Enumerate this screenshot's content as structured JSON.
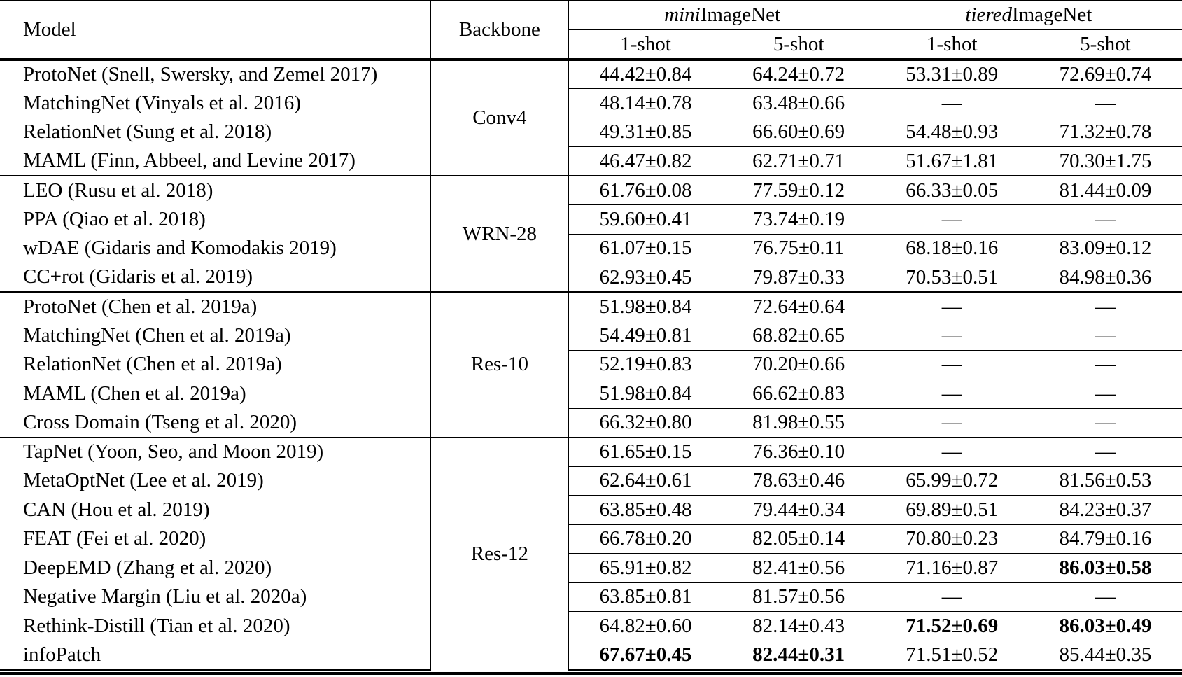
{
  "colors": {
    "text": "#000000",
    "background": "#ffffff",
    "rule": "#000000"
  },
  "missing_marker": "—",
  "header": {
    "model": "Model",
    "backbone": "Backbone",
    "groups": [
      {
        "italic": "mini",
        "rest": "ImageNet",
        "sub": [
          "1-shot",
          "5-shot"
        ]
      },
      {
        "italic": "tiered",
        "rest": "ImageNet",
        "sub": [
          "1-shot",
          "5-shot"
        ]
      }
    ]
  },
  "sections": [
    {
      "backbone": "Conv4",
      "rows": [
        {
          "model": "ProtoNet (Snell, Swersky, and Zemel 2017)",
          "values": [
            "44.42±0.84",
            "64.24±0.72",
            "53.31±0.89",
            "72.69±0.74"
          ],
          "bold": [
            false,
            false,
            false,
            false
          ]
        },
        {
          "model": "MatchingNet (Vinyals et al. 2016)",
          "values": [
            "48.14±0.78",
            "63.48±0.66",
            "—",
            "—"
          ],
          "bold": [
            false,
            false,
            false,
            false
          ]
        },
        {
          "model": "RelationNet (Sung et al. 2018)",
          "values": [
            "49.31±0.85",
            "66.60±0.69",
            "54.48±0.93",
            "71.32±0.78"
          ],
          "bold": [
            false,
            false,
            false,
            false
          ]
        },
        {
          "model": "MAML (Finn, Abbeel, and Levine 2017)",
          "values": [
            "46.47±0.82",
            "62.71±0.71",
            "51.67±1.81",
            "70.30±1.75"
          ],
          "bold": [
            false,
            false,
            false,
            false
          ]
        }
      ]
    },
    {
      "backbone": "WRN-28",
      "rows": [
        {
          "model": "LEO (Rusu et al. 2018)",
          "values": [
            "61.76±0.08",
            "77.59±0.12",
            "66.33±0.05",
            "81.44±0.09"
          ],
          "bold": [
            false,
            false,
            false,
            false
          ]
        },
        {
          "model": "PPA (Qiao et al. 2018)",
          "values": [
            "59.60±0.41",
            "73.74±0.19",
            "—",
            "—"
          ],
          "bold": [
            false,
            false,
            false,
            false
          ]
        },
        {
          "model": "wDAE (Gidaris and Komodakis 2019)",
          "values": [
            "61.07±0.15",
            "76.75±0.11",
            "68.18±0.16",
            "83.09±0.12"
          ],
          "bold": [
            false,
            false,
            false,
            false
          ]
        },
        {
          "model": "CC+rot (Gidaris et al. 2019)",
          "values": [
            "62.93±0.45",
            "79.87±0.33",
            "70.53±0.51",
            "84.98±0.36"
          ],
          "bold": [
            false,
            false,
            false,
            false
          ]
        }
      ]
    },
    {
      "backbone": "Res-10",
      "rows": [
        {
          "model": "ProtoNet (Chen et al. 2019a)",
          "values": [
            "51.98±0.84",
            "72.64±0.64",
            "—",
            "—"
          ],
          "bold": [
            false,
            false,
            false,
            false
          ]
        },
        {
          "model": "MatchingNet (Chen et al. 2019a)",
          "values": [
            "54.49±0.81",
            "68.82±0.65",
            "—",
            "—"
          ],
          "bold": [
            false,
            false,
            false,
            false
          ]
        },
        {
          "model": "RelationNet (Chen et al. 2019a)",
          "values": [
            "52.19±0.83",
            "70.20±0.66",
            "—",
            "—"
          ],
          "bold": [
            false,
            false,
            false,
            false
          ]
        },
        {
          "model": "MAML (Chen et al. 2019a)",
          "values": [
            "51.98±0.84",
            "66.62±0.83",
            "—",
            "—"
          ],
          "bold": [
            false,
            false,
            false,
            false
          ]
        },
        {
          "model": "Cross Domain (Tseng et al. 2020)",
          "values": [
            "66.32±0.80",
            "81.98±0.55",
            "—",
            "—"
          ],
          "bold": [
            false,
            false,
            false,
            false
          ]
        }
      ]
    },
    {
      "backbone": "Res-12",
      "rows": [
        {
          "model": "TapNet (Yoon, Seo, and Moon 2019)",
          "values": [
            "61.65±0.15",
            "76.36±0.10",
            "—",
            "—"
          ],
          "bold": [
            false,
            false,
            false,
            false
          ]
        },
        {
          "model": "MetaOptNet (Lee et al. 2019)",
          "values": [
            "62.64±0.61",
            "78.63±0.46",
            "65.99±0.72",
            "81.56±0.53"
          ],
          "bold": [
            false,
            false,
            false,
            false
          ]
        },
        {
          "model": "CAN (Hou et al. 2019)",
          "values": [
            "63.85±0.48",
            "79.44±0.34",
            "69.89±0.51",
            "84.23±0.37"
          ],
          "bold": [
            false,
            false,
            false,
            false
          ]
        },
        {
          "model": "FEAT (Fei et al. 2020)",
          "values": [
            "66.78±0.20",
            "82.05±0.14",
            "70.80±0.23",
            "84.79±0.16"
          ],
          "bold": [
            false,
            false,
            false,
            false
          ]
        },
        {
          "model": "DeepEMD (Zhang et al. 2020)",
          "values": [
            "65.91±0.82",
            "82.41±0.56",
            "71.16±0.87",
            "86.03±0.58"
          ],
          "bold": [
            false,
            false,
            false,
            true
          ]
        },
        {
          "model": "Negative Margin (Liu et al. 2020a)",
          "values": [
            "63.85±0.81",
            "81.57±0.56",
            "—",
            "—"
          ],
          "bold": [
            false,
            false,
            false,
            false
          ]
        },
        {
          "model": "Rethink-Distill (Tian et al. 2020)",
          "values": [
            "64.82±0.60",
            "82.14±0.43",
            "71.52±0.69",
            "86.03±0.49"
          ],
          "bold": [
            false,
            false,
            true,
            true
          ]
        },
        {
          "model": "infoPatch",
          "values": [
            "67.67±0.45",
            "82.44±0.31",
            "71.51±0.52",
            "85.44±0.35"
          ],
          "bold": [
            true,
            true,
            false,
            false
          ]
        }
      ]
    }
  ]
}
